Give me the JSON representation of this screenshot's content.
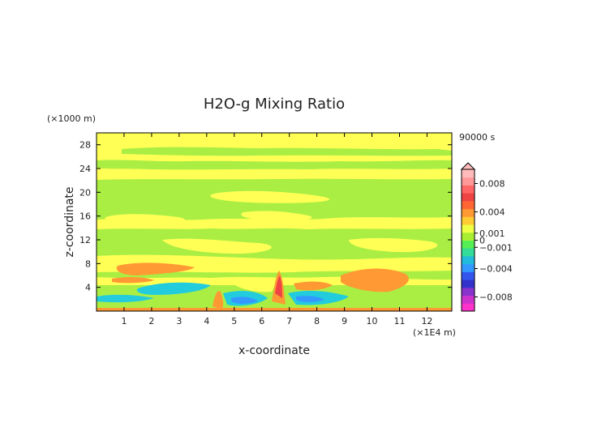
{
  "chart_data": {
    "type": "heatmap",
    "title": "H2O-g Mixing Ratio",
    "xlabel": "x-coordinate",
    "ylabel": "z-coordinate",
    "x_unit": "(×1E4 m)",
    "y_unit": "(×1000 m)",
    "time_label": "90000 s",
    "xlim": [
      0,
      12.9
    ],
    "ylim": [
      0,
      30
    ],
    "x_ticks": [
      "1",
      "2",
      "3",
      "4",
      "5",
      "6",
      "7",
      "8",
      "9",
      "10",
      "11",
      "12"
    ],
    "y_ticks": [
      "4",
      "8",
      "12",
      "16",
      "20",
      "24",
      "28"
    ],
    "colorbar": {
      "tick_labels": [
        "0.008",
        "0.004",
        "0.001",
        "0",
        "−0.001",
        "−0.004",
        "−0.008"
      ],
      "tick_values": [
        0.008,
        0.004,
        0.001,
        0,
        -0.001,
        -0.004,
        -0.008
      ],
      "range": [
        -0.01,
        0.01
      ],
      "colors": [
        "#ff33cc",
        "#cc33cc",
        "#8833cc",
        "#3333cc",
        "#3355ee",
        "#3399ff",
        "#22bbdd",
        "#33dd99",
        "#55ee55",
        "#aaee33",
        "#eeff44",
        "#ffcc33",
        "#ff9933",
        "#ff6633",
        "#ee4444",
        "#ff6666",
        "#ff9999",
        "#ffbbbb"
      ]
    }
  }
}
